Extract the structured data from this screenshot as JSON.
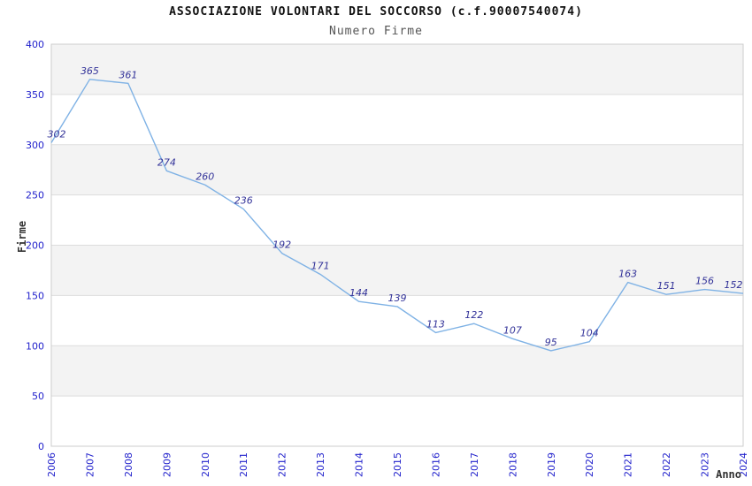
{
  "chart_data": {
    "type": "line",
    "title": "ASSOCIAZIONE VOLONTARI DEL SOCCORSO (c.f.90007540074)",
    "subtitle": "Numero Firme",
    "xlabel": "Anno",
    "ylabel": "Firme",
    "x": [
      "2006",
      "2007",
      "2008",
      "2009",
      "2010",
      "2011",
      "2012",
      "2013",
      "2014",
      "2015",
      "2016",
      "2017",
      "2018",
      "2019",
      "2020",
      "2021",
      "2022",
      "2023",
      "2024"
    ],
    "series": [
      {
        "name": "Numero Firme",
        "values": [
          302,
          365,
          361,
          274,
          260,
          236,
          192,
          171,
          144,
          139,
          113,
          122,
          107,
          95,
          104,
          163,
          151,
          156,
          152
        ]
      }
    ],
    "ylim": [
      0,
      400
    ],
    "ytick_step": 50,
    "grid": true,
    "legend_position": "none",
    "colors": {
      "line": "#7fb2e5",
      "value_label": "#333399",
      "tick_label": "#2222cc",
      "band_even": "#ffffff",
      "band_odd": "#f3f3f3",
      "gridline": "#dddddd",
      "plot_border": "#cccccc",
      "title": "#111111",
      "subtitle": "#555555",
      "axis_title": "#333333"
    }
  }
}
